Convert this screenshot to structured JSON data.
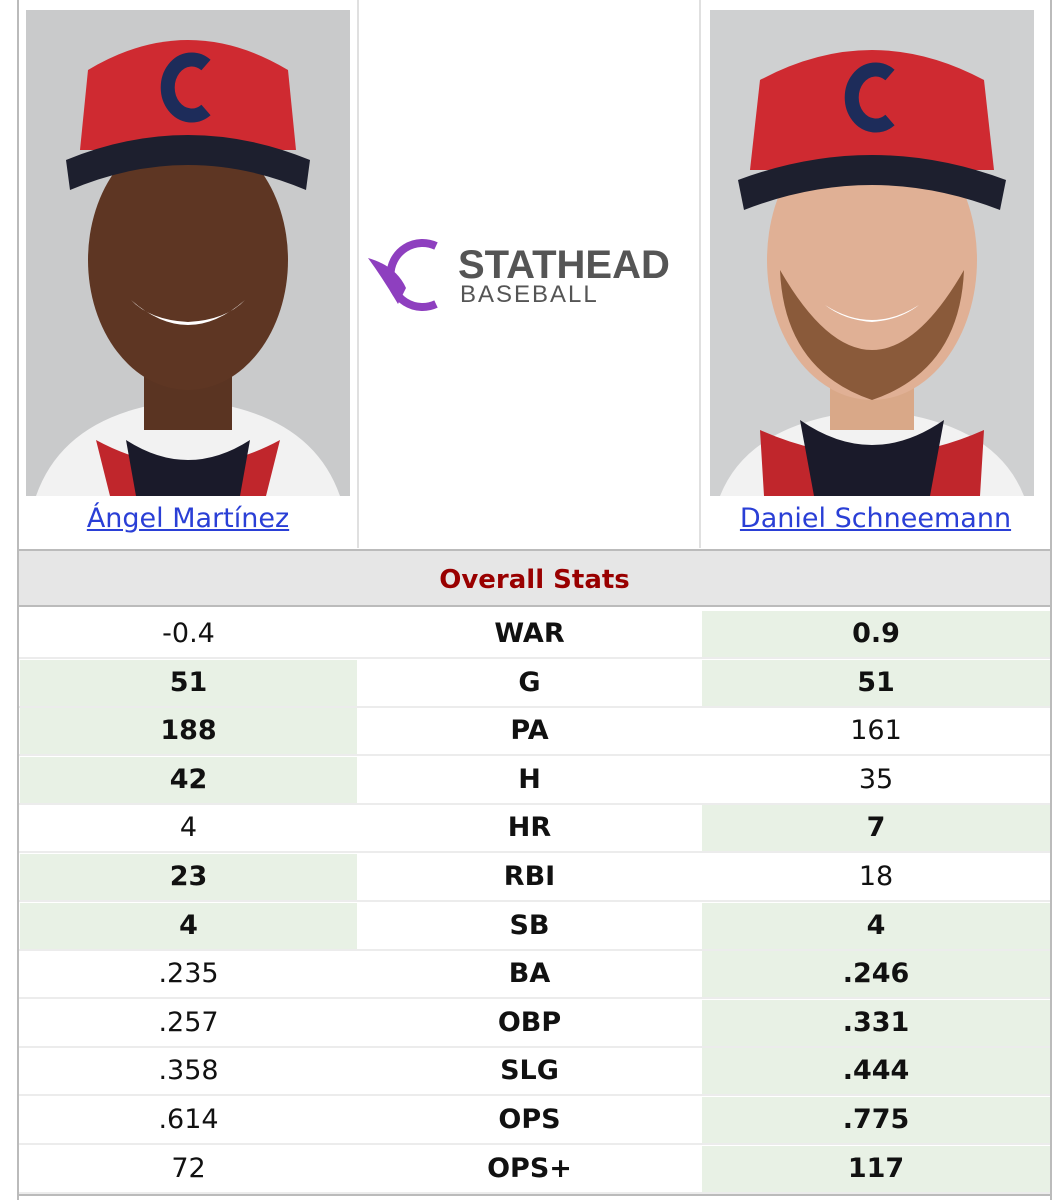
{
  "header": {
    "players": [
      {
        "name": "Ángel Martínez"
      },
      {
        "name": "Daniel Schneemann"
      }
    ],
    "logo": {
      "brand": "STATHEAD",
      "sub": "BASEBALL"
    }
  },
  "table": {
    "section_title": "Overall Stats",
    "rows": [
      {
        "left": "-0.4",
        "stat": "WAR",
        "right": "0.9",
        "leader": "right"
      },
      {
        "left": "51",
        "stat": "G",
        "right": "51",
        "leader": "both"
      },
      {
        "left": "188",
        "stat": "PA",
        "right": "161",
        "leader": "left"
      },
      {
        "left": "42",
        "stat": "H",
        "right": "35",
        "leader": "left"
      },
      {
        "left": "4",
        "stat": "HR",
        "right": "7",
        "leader": "right"
      },
      {
        "left": "23",
        "stat": "RBI",
        "right": "18",
        "leader": "left"
      },
      {
        "left": "4",
        "stat": "SB",
        "right": "4",
        "leader": "both"
      },
      {
        "left": ".235",
        "stat": "BA",
        "right": ".246",
        "leader": "right"
      },
      {
        "left": ".257",
        "stat": "OBP",
        "right": ".331",
        "leader": "right"
      },
      {
        "left": ".358",
        "stat": "SLG",
        "right": ".444",
        "leader": "right"
      },
      {
        "left": ".614",
        "stat": "OPS",
        "right": ".775",
        "leader": "right"
      },
      {
        "left": "72",
        "stat": "OPS+",
        "right": "117",
        "leader": "right"
      }
    ]
  }
}
